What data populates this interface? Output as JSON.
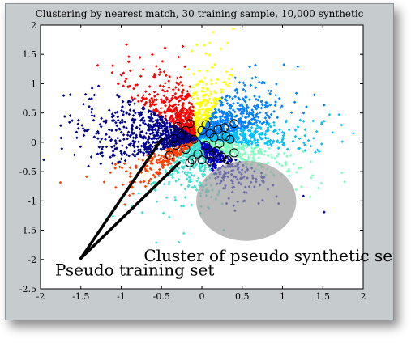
{
  "chart_data": {
    "type": "scatter",
    "title": "Clustering by nearest match, 30 training sample, 10,000 synthetic",
    "xlabel": "",
    "ylabel": "",
    "xlim": [
      -2,
      2
    ],
    "ylim": [
      -2.5,
      2
    ],
    "xticks": [
      "-2",
      "-1.5",
      "-1",
      "-0.5",
      "0",
      "0.5",
      "1",
      "1.5",
      "2"
    ],
    "yticks": [
      "2",
      "1.5",
      "1",
      "0.5",
      "0",
      "-0.5",
      "-1",
      "-1.5",
      "-2",
      "-2.5"
    ],
    "grid": false,
    "center": [
      -0.05,
      0.05
    ],
    "clusters": [
      {
        "color": "#ff0000",
        "angle_from": 95,
        "angle_to": 135,
        "count": 420
      },
      {
        "color": "#ffff00",
        "angle_from": 70,
        "angle_to": 95,
        "count": 300
      },
      {
        "color": "#0080ff",
        "angle_from": 20,
        "angle_to": 70,
        "count": 520
      },
      {
        "color": "#00c0ff",
        "angle_from": -10,
        "angle_to": 20,
        "count": 380
      },
      {
        "color": "#80ffc0",
        "angle_from": -40,
        "angle_to": -10,
        "count": 300
      },
      {
        "color": "#0000c0",
        "angle_from": -75,
        "angle_to": -40,
        "count": 320
      },
      {
        "color": "#40e0d0",
        "angle_from": -125,
        "angle_to": -75,
        "count": 300
      },
      {
        "color": "#ff4000",
        "angle_from": -155,
        "angle_to": -125,
        "count": 220
      },
      {
        "color": "#00008b",
        "angle_from": 135,
        "angle_to": 205,
        "count": 700
      }
    ],
    "training_points": [
      [
        -0.3,
        0.27
      ],
      [
        -0.15,
        0.32
      ],
      [
        0.05,
        0.3
      ],
      [
        0.2,
        0.22
      ],
      [
        0.4,
        0.32
      ],
      [
        -0.35,
        0.06
      ],
      [
        0.0,
        0.2
      ],
      [
        0.3,
        0.1
      ],
      [
        0.22,
        -0.02
      ],
      [
        0.4,
        -0.18
      ],
      [
        -0.4,
        -0.22
      ],
      [
        -0.15,
        -0.35
      ],
      [
        0.1,
        -0.32
      ],
      [
        0.25,
        -0.25
      ],
      [
        -0.2,
        -0.12
      ],
      [
        -0.1,
        0.05
      ],
      [
        0.05,
        -0.05
      ],
      [
        0.15,
        0.08
      ],
      [
        -0.25,
        0.12
      ],
      [
        0.32,
        -0.3
      ],
      [
        -0.05,
        -0.2
      ],
      [
        0.1,
        0.15
      ],
      [
        0.18,
        -0.15
      ],
      [
        -0.32,
        -0.05
      ],
      [
        0.0,
        -0.3
      ],
      [
        0.28,
        0.25
      ],
      [
        -0.2,
        0.2
      ],
      [
        0.12,
        -0.22
      ],
      [
        -0.12,
        -0.3
      ],
      [
        0.35,
        0.05
      ]
    ],
    "highlight_cluster": {
      "cx": 0.55,
      "cy": -1.0,
      "r": 0.62,
      "color": "#9e9e9e"
    },
    "annotations": {
      "pseudo_training": {
        "text": "Pseudo training set",
        "x": -1.82,
        "y": -2.27,
        "arrow_from": [
          -1.5,
          -1.98
        ],
        "arrow_to": [
          [
            -0.5,
            0.05
          ],
          [
            -0.28,
            -0.35
          ]
        ]
      },
      "pseudo_synthetic": {
        "text": "Cluster of pseudo synthetic set",
        "x": -0.72,
        "y": -2.03
      }
    }
  }
}
